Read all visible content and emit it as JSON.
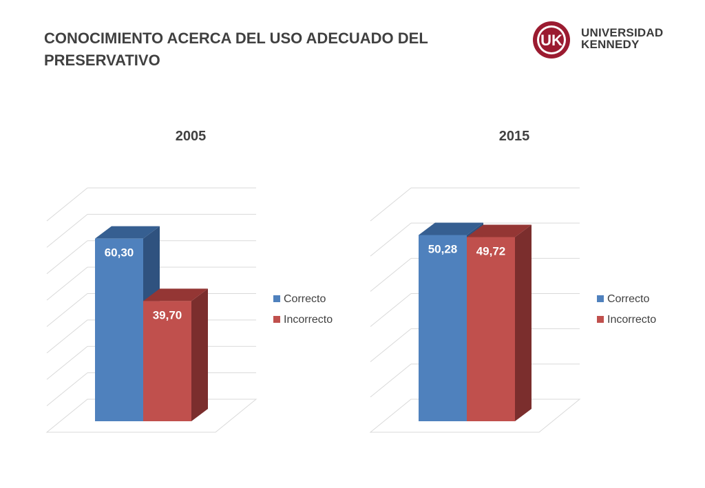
{
  "page": {
    "title_line1": "CONOCIMIENTO ACERCA DEL USO ADECUADO DEL",
    "title_line2": "PRESERVATIVO"
  },
  "logo": {
    "mark": "UK",
    "line1": "UNIVERSIDAD",
    "line2": "KENNEDY",
    "color": "#9B1B30"
  },
  "colors": {
    "correcto_front": "#4F81BD",
    "correcto_side": "#2F527F",
    "correcto_top": "#365F91",
    "incorrecto_front": "#C0504D",
    "incorrecto_side": "#7B2E2D",
    "incorrecto_top": "#943634",
    "grid": "#d9d9d9"
  },
  "chart_data": [
    {
      "type": "bar",
      "title": "2005",
      "categories": [
        "Correcto",
        "Incorrecto"
      ],
      "values": [
        60.3,
        39.7
      ],
      "data_labels": [
        "60,30",
        "39,70"
      ],
      "legend": [
        "Correcto",
        "Incorrecto"
      ],
      "legend_position": "right",
      "three_d": true,
      "gridlines": 8
    },
    {
      "type": "bar",
      "title": "2015",
      "categories": [
        "Correcto",
        "Incorrecto"
      ],
      "values": [
        50.28,
        49.72
      ],
      "data_labels": [
        "50,28",
        "49,72"
      ],
      "legend": [
        "Correcto",
        "Incorrecto"
      ],
      "legend_position": "right",
      "three_d": true,
      "gridlines": 6
    }
  ]
}
